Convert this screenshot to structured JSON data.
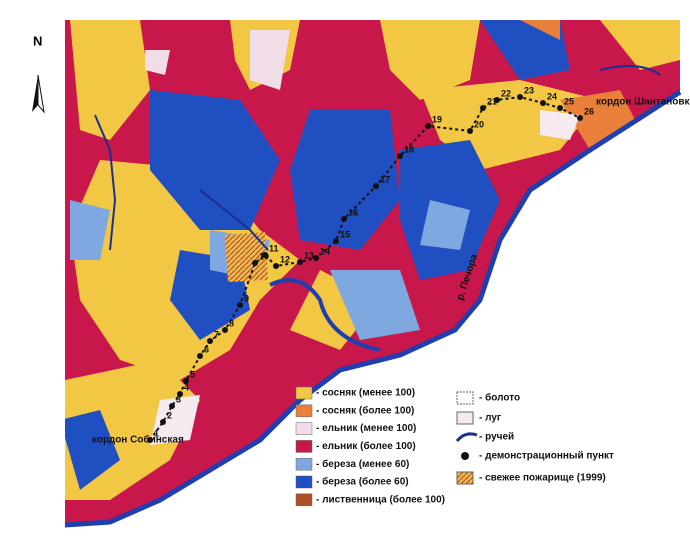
{
  "north": "N",
  "labels": {
    "sobinskaya": "кордон Собинская",
    "shantanovka": "кордон Шантановка",
    "pechora": "р. Печора"
  },
  "points": [
    1,
    2,
    3,
    4,
    5,
    6,
    7,
    8,
    9,
    10,
    11,
    12,
    13,
    14,
    15,
    16,
    17,
    18,
    19,
    20,
    21,
    22,
    23,
    24,
    25,
    26
  ],
  "legend": {
    "left": [
      "- сосняк (менее 100)",
      "- сосняк (более 100)",
      "- ельник (менее 100)",
      "- ельник (более 100)",
      "- береза (менее 60)",
      "- береза (более 60)",
      "- лиственница (более 100)"
    ],
    "right": [
      "- болото",
      "- луг",
      "- ручей",
      "- демонстрационный пункт",
      "- свежее пожарище (1999)"
    ]
  }
}
